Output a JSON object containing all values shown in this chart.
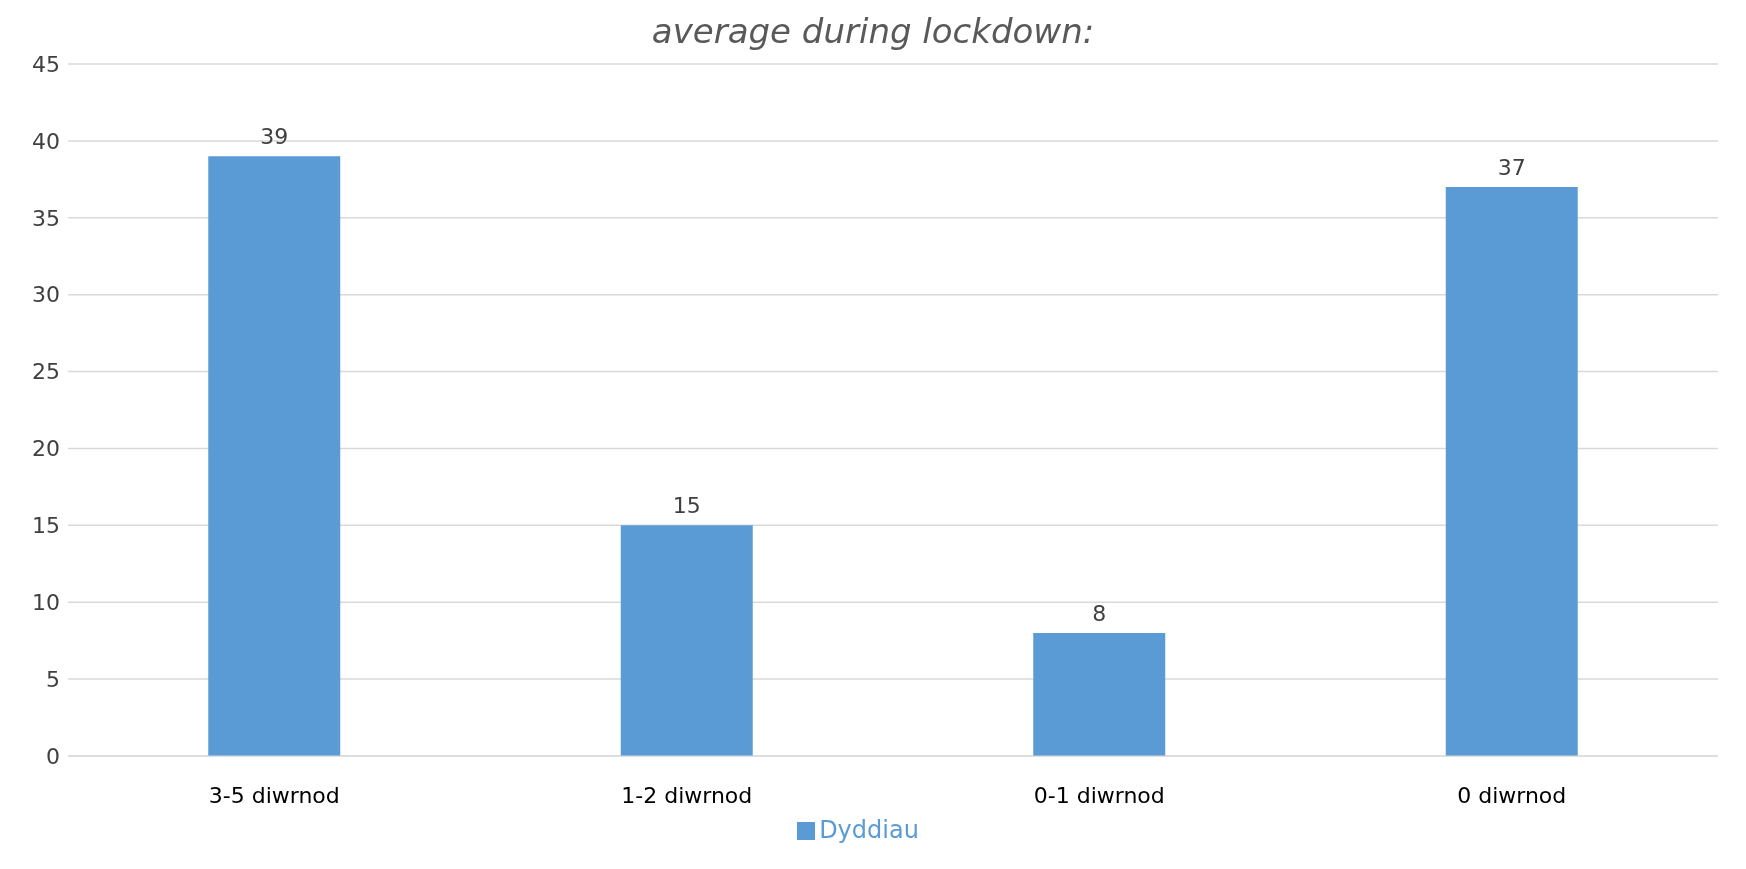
{
  "chart_data": {
    "type": "bar",
    "title": "average during lockdown:",
    "categories": [
      "3-5 diwrnod",
      "1-2 diwrnod",
      "0-1 diwrnod",
      "0 diwrnod"
    ],
    "series": [
      {
        "name": "Dyddiau",
        "color": "#5b9bd5",
        "values": [
          39,
          15,
          8,
          37
        ]
      }
    ],
    "ylim": [
      0,
      45
    ],
    "yticks": [
      0,
      5,
      10,
      15,
      20,
      25,
      30,
      35,
      40,
      45
    ],
    "grid": "y",
    "data_labels": true,
    "legend": "bottom"
  }
}
